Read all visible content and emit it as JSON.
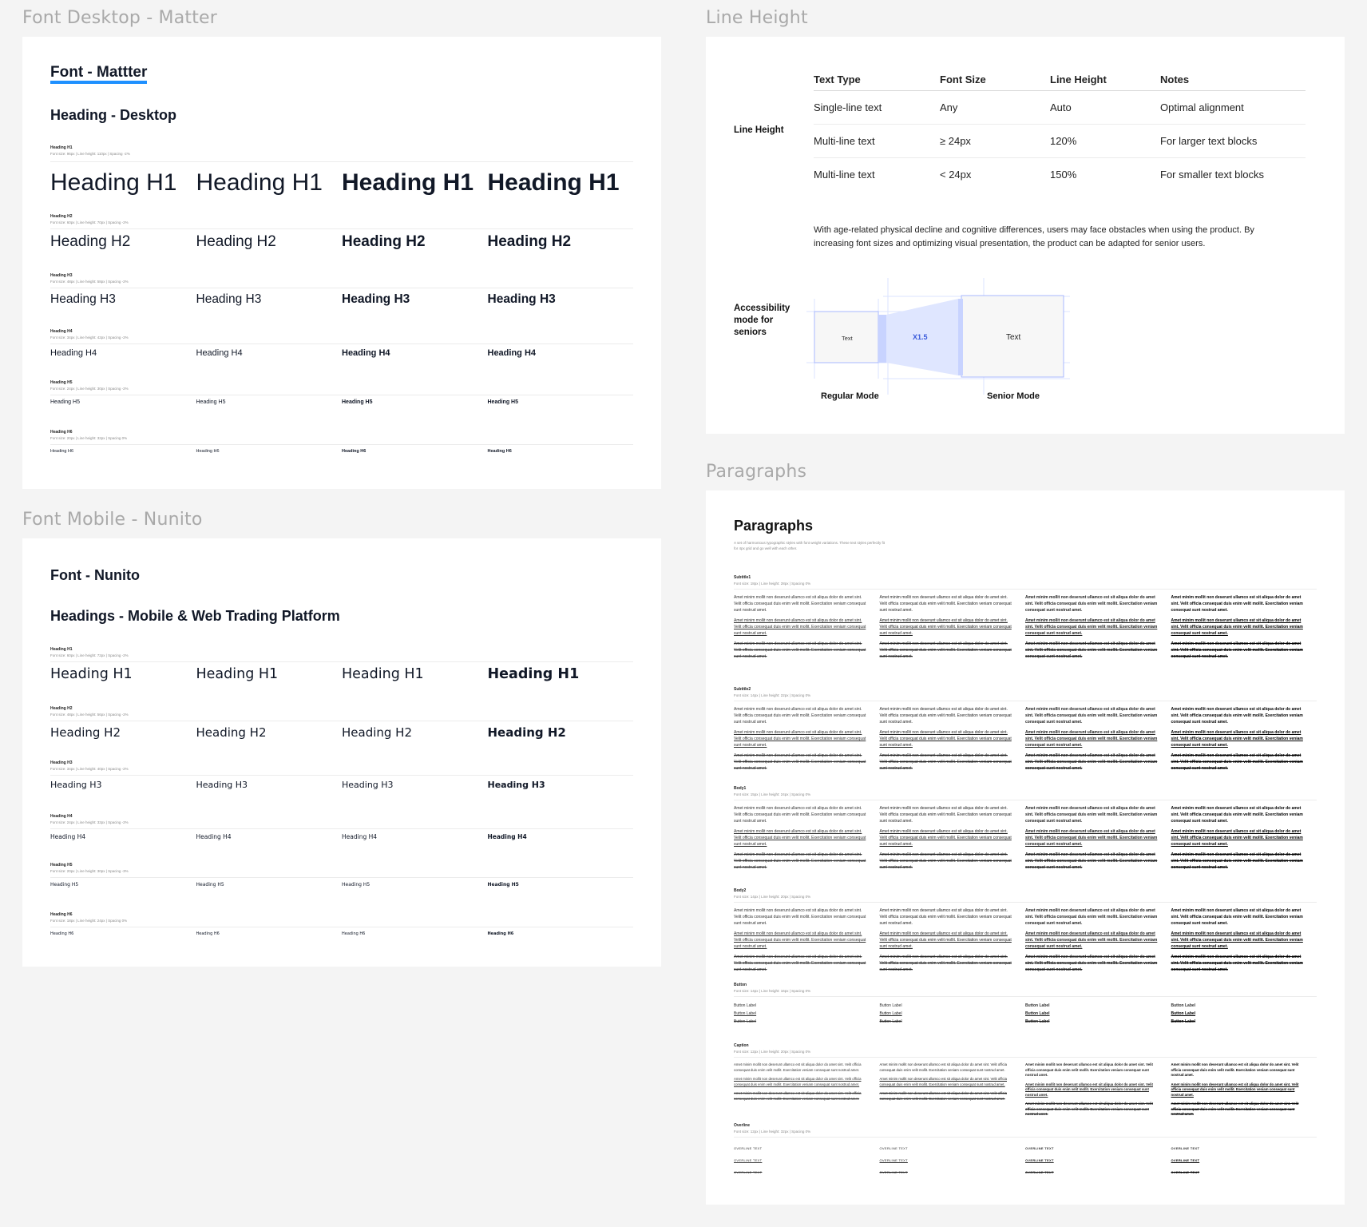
{
  "frames": {
    "desktop": "Font Desktop - Matter",
    "mobile": "Font Mobile - Nunito",
    "line_height": "Line Height",
    "paragraphs": "Paragraphs"
  },
  "desktop": {
    "font_title": "Font - Mattter",
    "section_title": "Heading - Desktop",
    "rows": [
      {
        "label": "Heading H1",
        "meta": "Font size: 96px | Line height: 110px | Spacing -2%",
        "sample": "Heading H1"
      },
      {
        "label": "Heading H2",
        "meta": "Font size: 60px | Line height: 70px | Spacing -2%",
        "sample": "Heading H2"
      },
      {
        "label": "Heading H3",
        "meta": "Font size: 48px | Line height: 58px | Spacing -2%",
        "sample": "Heading H3"
      },
      {
        "label": "Heading H4",
        "meta": "Font size: 34px | Line height: 42px | Spacing -2%",
        "sample": "Heading H4"
      },
      {
        "label": "Heading H5",
        "meta": "Font size: 24px | Line height: 30px | Spacing -2%",
        "sample": "Heading H5"
      },
      {
        "label": "Heading H6",
        "meta": "Font size: 20px | Line height: 32px | Spacing 0%",
        "sample": "Heading H6"
      }
    ]
  },
  "mobile": {
    "font_title": "Font - Nunito",
    "section_title": "Headings - Mobile & Web Trading Platform",
    "rows": [
      {
        "label": "Heading H1",
        "meta": "Font size: 60px | Line height: 72px | Spacing -2%",
        "sample": "Heading H1"
      },
      {
        "label": "Heading H2",
        "meta": "Font size: 48px | Line height: 56px | Spacing -2%",
        "sample": "Heading H2"
      },
      {
        "label": "Heading H3",
        "meta": "Font size: 34px | Line height: 40px | Spacing -2%",
        "sample": "Heading H3"
      },
      {
        "label": "Heading H4",
        "meta": "Font size: 24px | Line height: 32px | Spacing -2%",
        "sample": "Heading H4"
      },
      {
        "label": "Heading H5",
        "meta": "Font size: 20px | Line height: 30px | Spacing -3%",
        "sample": "Heading H5"
      },
      {
        "label": "Heading H6",
        "meta": "Font size: 18px | Line height: 24px | Spacing 0%",
        "sample": "Heading H6"
      }
    ]
  },
  "line_height": {
    "side_label": "Line Height",
    "headers": [
      "Text Type",
      "Font Size",
      "Line Height",
      "Notes"
    ],
    "rows": [
      [
        "Single-line text",
        "Any",
        "Auto",
        "Optimal alignment"
      ],
      [
        "Multi-line text",
        "≥ 24px",
        "120%",
        "For larger text blocks"
      ],
      [
        "Multi-line text",
        "< 24px",
        "150%",
        "For smaller text blocks"
      ]
    ],
    "paragraph": "With age-related physical decline and cognitive differences, users may face obstacles when using the product. By increasing font sizes and optimizing visual presentation, the product can be adapted for senior users.",
    "accessibility_label": "Accessibility mode for seniors",
    "regular_box_text": "Text",
    "scale_text": "X1.5",
    "senior_box_text": "Text",
    "regular_caption": "Regular Mode",
    "senior_caption": "Senior Mode",
    "accent_color": "#3b5bdb"
  },
  "paragraphs": {
    "title": "Paragraphs",
    "description": "A set of harmonious typographic styles with font weight variations. These text styles perfectly fit for 4px grid and go well with each other.",
    "sample": "Amet minim mollit non deserunt ullamco est sit aliqua dolor do amet sint. Velit officia consequat duis enim velit mollit. Exercitation veniam consequat sunt nostrud amet.",
    "groups": [
      {
        "label": "Subtitle1",
        "meta": "Font size: 18px | Line height: 28px | Spacing 0%"
      },
      {
        "label": "Subtitle2",
        "meta": "Font size: 14px | Line height: 22px | Spacing 0%"
      },
      {
        "label": "Body1",
        "meta": "Font size: 15px | Line height: 24px | Spacing 0%"
      },
      {
        "label": "Body2",
        "meta": "Font size: 14px | Line height: 20px | Spacing 0%"
      },
      {
        "label": "Button",
        "meta": "Font size: 14px | Line height: 16px | Spacing 0%",
        "text": "Button Label"
      },
      {
        "label": "Caption",
        "meta": "Font size: 12px | Line height: 20px | Spacing 0%"
      },
      {
        "label": "Overline",
        "meta": "Font size: 12px | Line height: 32px | Spacing 0%",
        "text": "OVERLINE TEXT"
      }
    ]
  }
}
